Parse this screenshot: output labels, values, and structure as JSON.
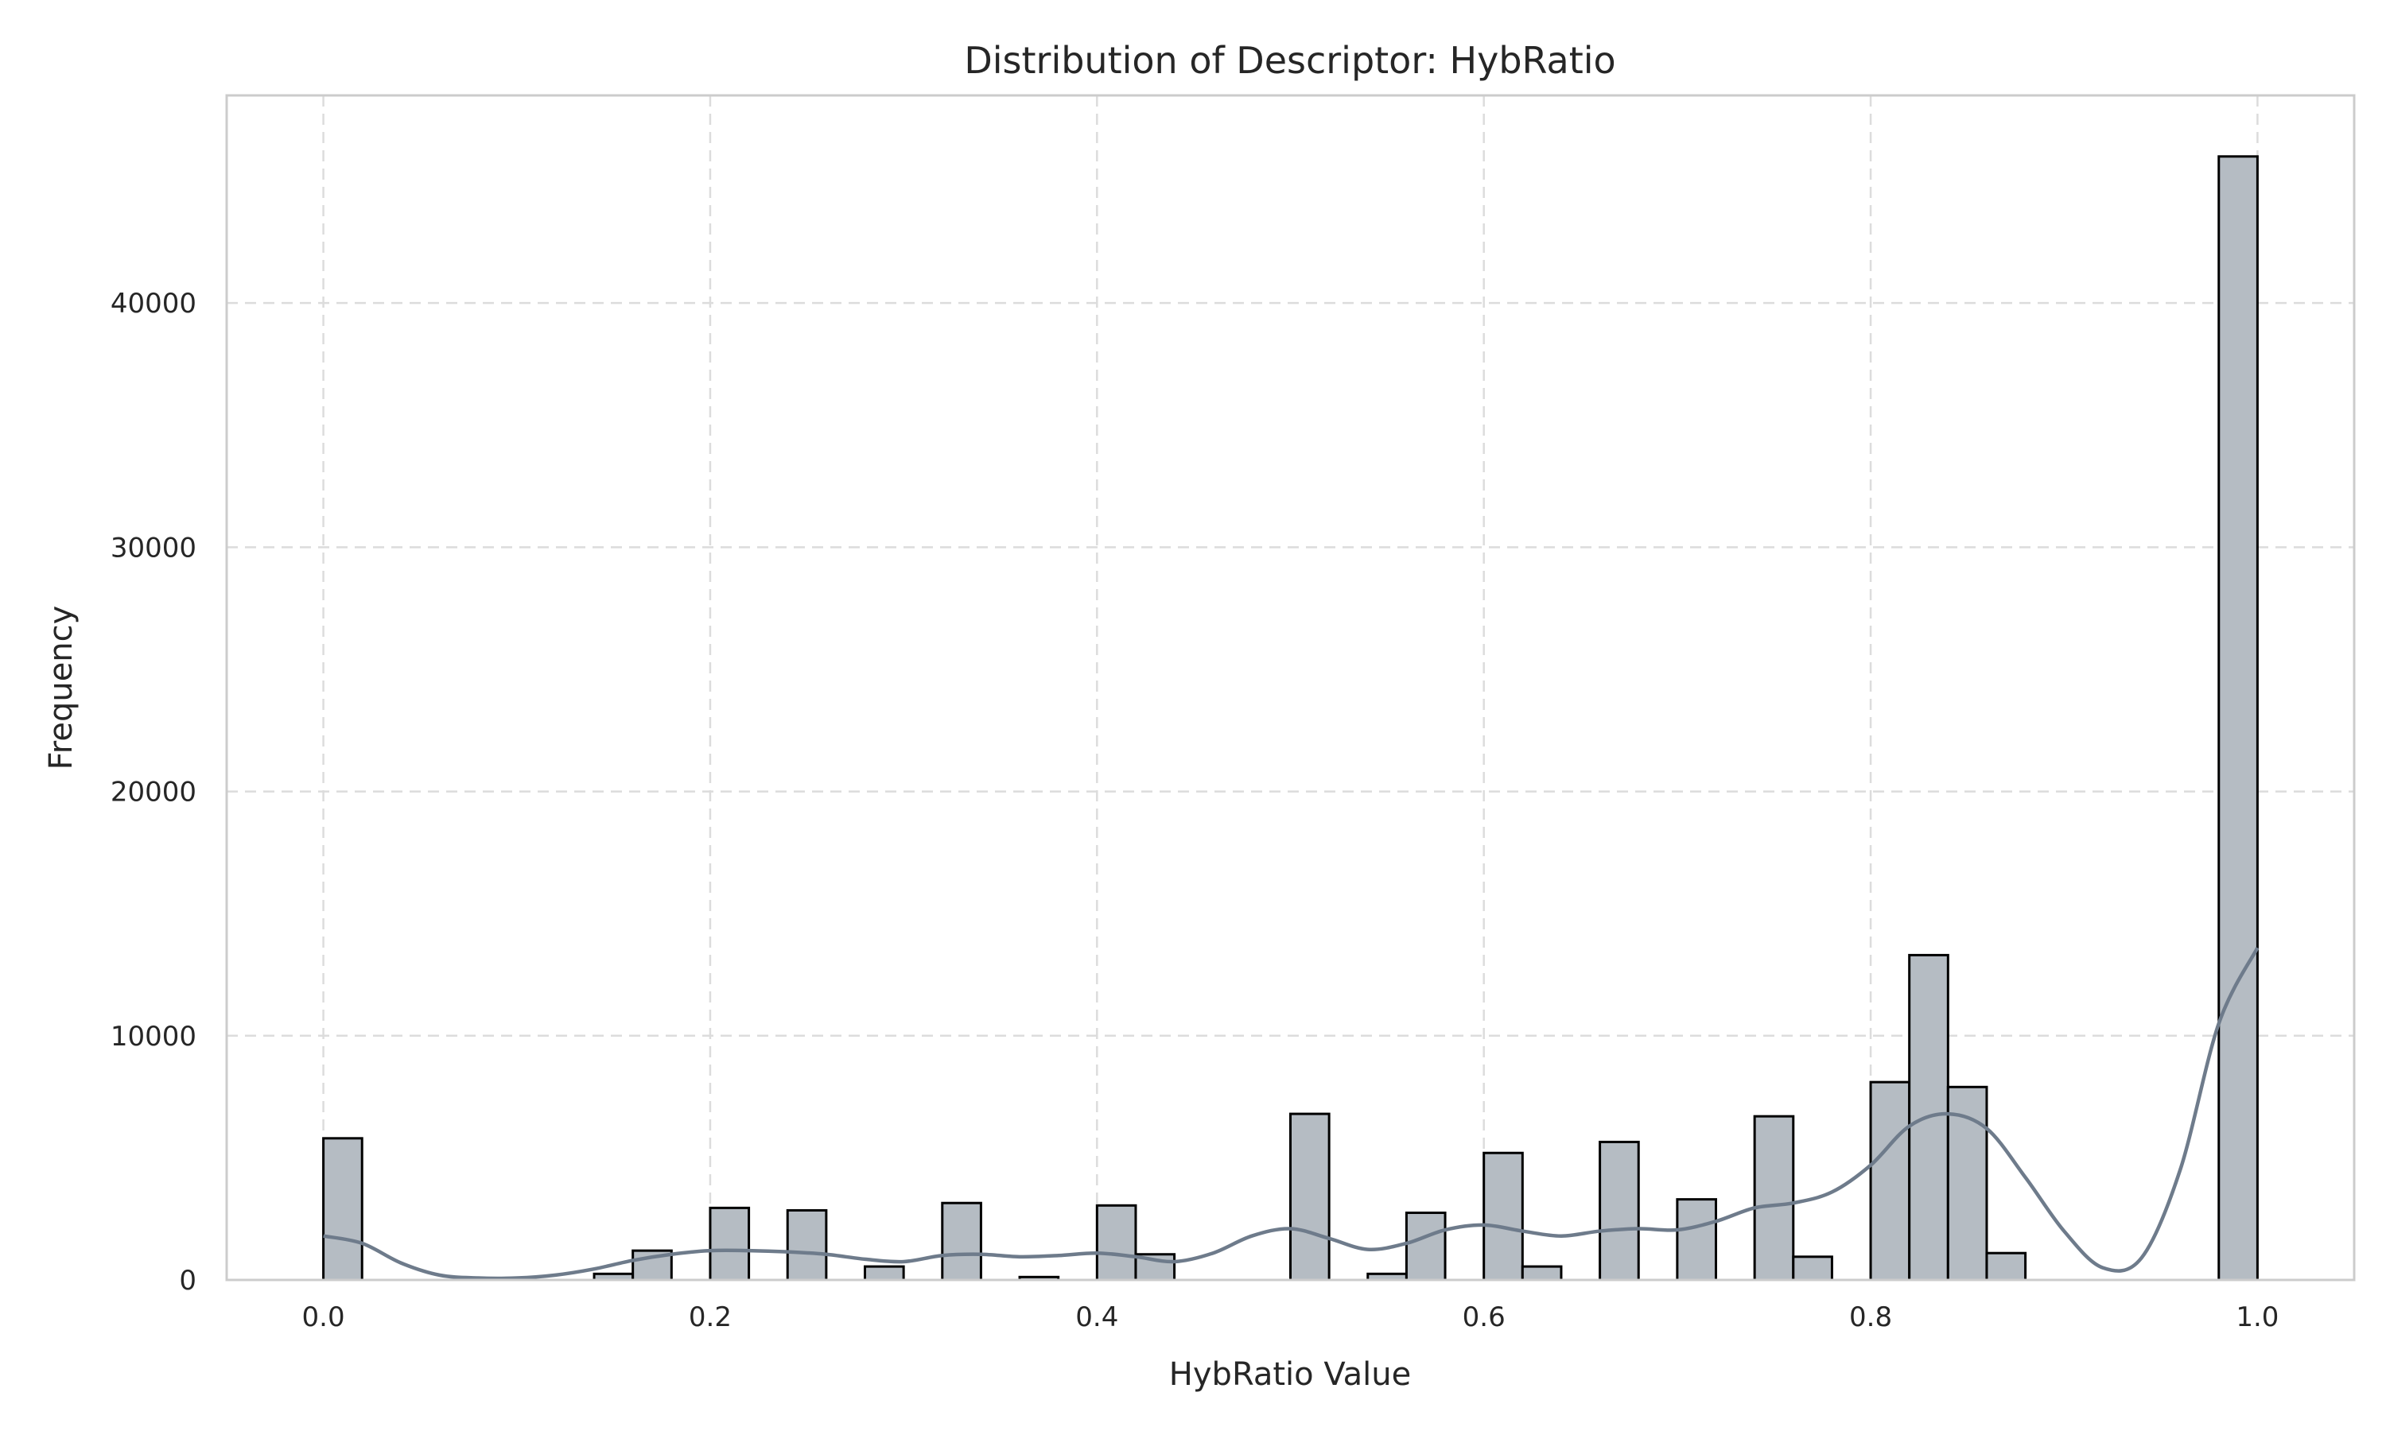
{
  "chart_data": {
    "type": "bar",
    "subtype": "histogram-with-kde",
    "title": "Distribution of Descriptor: HybRatio",
    "xlabel": "HybRatio Value",
    "ylabel": "Frequency",
    "xlim": [
      -0.05,
      1.05
    ],
    "ylim": [
      0,
      48500
    ],
    "x_ticks": [
      0.0,
      0.2,
      0.4,
      0.6,
      0.8,
      1.0
    ],
    "x_tick_labels": [
      "0.0",
      "0.2",
      "0.4",
      "0.6",
      "0.8",
      "1.0"
    ],
    "y_ticks": [
      0,
      10000,
      20000,
      30000,
      40000
    ],
    "y_tick_labels": [
      "0",
      "10000",
      "20000",
      "30000",
      "40000"
    ],
    "grid": true,
    "legend": "none",
    "bin_width": 0.02,
    "bins": [
      {
        "x": 0.0,
        "count": 5800
      },
      {
        "x": 0.14,
        "count": 250
      },
      {
        "x": 0.16,
        "count": 1200
      },
      {
        "x": 0.2,
        "count": 2950
      },
      {
        "x": 0.24,
        "count": 2850
      },
      {
        "x": 0.28,
        "count": 550
      },
      {
        "x": 0.32,
        "count": 3150
      },
      {
        "x": 0.36,
        "count": 120
      },
      {
        "x": 0.4,
        "count": 3050
      },
      {
        "x": 0.42,
        "count": 1050
      },
      {
        "x": 0.5,
        "count": 6800
      },
      {
        "x": 0.54,
        "count": 250
      },
      {
        "x": 0.56,
        "count": 2750
      },
      {
        "x": 0.6,
        "count": 5200
      },
      {
        "x": 0.62,
        "count": 550
      },
      {
        "x": 0.66,
        "count": 5650
      },
      {
        "x": 0.7,
        "count": 3300
      },
      {
        "x": 0.74,
        "count": 6700
      },
      {
        "x": 0.76,
        "count": 950
      },
      {
        "x": 0.8,
        "count": 8100
      },
      {
        "x": 0.82,
        "count": 13300
      },
      {
        "x": 0.84,
        "count": 7900
      },
      {
        "x": 0.86,
        "count": 1100
      },
      {
        "x": 0.98,
        "count": 46000
      }
    ],
    "kde": {
      "x": [
        0.0,
        0.02,
        0.04,
        0.06,
        0.08,
        0.1,
        0.12,
        0.14,
        0.16,
        0.18,
        0.2,
        0.22,
        0.24,
        0.26,
        0.28,
        0.3,
        0.32,
        0.34,
        0.36,
        0.38,
        0.4,
        0.42,
        0.44,
        0.46,
        0.48,
        0.5,
        0.52,
        0.54,
        0.56,
        0.58,
        0.6,
        0.62,
        0.64,
        0.66,
        0.68,
        0.7,
        0.72,
        0.74,
        0.76,
        0.78,
        0.8,
        0.82,
        0.84,
        0.86,
        0.88,
        0.9,
        0.92,
        0.94,
        0.96,
        0.98,
        1.0
      ],
      "y": [
        1800,
        1500,
        700,
        200,
        80,
        80,
        200,
        450,
        800,
        1050,
        1200,
        1200,
        1150,
        1050,
        850,
        750,
        1000,
        1050,
        950,
        1000,
        1100,
        950,
        750,
        1100,
        1800,
        2100,
        1700,
        1250,
        1500,
        2050,
        2250,
        2000,
        1800,
        2000,
        2100,
        2050,
        2400,
        2950,
        3150,
        3600,
        4700,
        6300,
        6800,
        6200,
        4200,
        2000,
        500,
        900,
        4500,
        10500,
        13600
      ]
    },
    "colors": {
      "bar_fill": "#b5bcc3",
      "bar_edge": "#000000",
      "kde_line": "#6e7b8b"
    }
  }
}
